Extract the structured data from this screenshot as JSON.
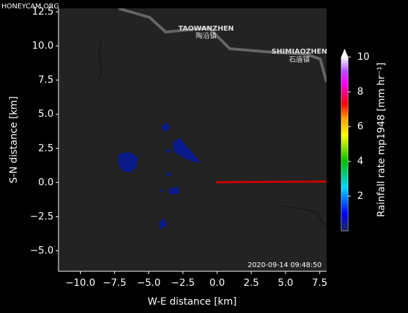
{
  "chart_data": {
    "type": "radar-map",
    "watermark": "HONEYCAM.ORG",
    "x_label": "W-E distance [km]",
    "y_label": "S-N distance [km]",
    "colorbar_label": "Rainfall rate mp1948 [mm hr⁻¹]",
    "timestamp": "2020-09-14 09:48:50",
    "places": [
      {
        "name": "TAOWANZHEN",
        "local_name": "陶沿镇"
      },
      {
        "name": "SHIMIAOZHEN",
        "local_name": "石庙镇"
      }
    ],
    "xlim": [
      -11.6,
      8
    ],
    "ylim": [
      -6.5,
      12.75
    ],
    "xticks": [
      {
        "value": -10,
        "label": "−10.0"
      },
      {
        "value": -7.5,
        "label": "−7.5"
      },
      {
        "value": -5,
        "label": "−5.0"
      },
      {
        "value": -2.5,
        "label": "−2.5"
      },
      {
        "value": 0,
        "label": "0.0"
      },
      {
        "value": 2.5,
        "label": "2.5"
      },
      {
        "value": 5,
        "label": "5.0"
      },
      {
        "value": 7.5,
        "label": "7.5"
      }
    ],
    "yticks": [
      {
        "value": -5,
        "label": "−5.0"
      },
      {
        "value": -2.5,
        "label": "−2.5"
      },
      {
        "value": 0,
        "label": "0.0"
      },
      {
        "value": 2.5,
        "label": "2.5"
      },
      {
        "value": 5,
        "label": "5.0"
      },
      {
        "value": 7.5,
        "label": "7.5"
      },
      {
        "value": 10,
        "label": "10.0"
      },
      {
        "value": 12.5,
        "label": "12.5"
      }
    ],
    "clim": [
      0,
      10
    ],
    "cticks": [
      2,
      4,
      6,
      8,
      10
    ]
  }
}
